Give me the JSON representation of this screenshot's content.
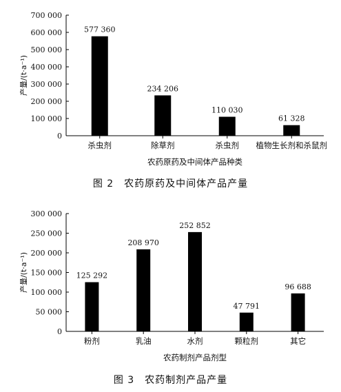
{
  "chart_data": [
    {
      "type": "bar",
      "categories": [
        "杀虫剂",
        "除草剂",
        "杀虫剂",
        "植物生长剂和杀鼠剂"
      ],
      "values": [
        577360,
        234206,
        110030,
        61328
      ],
      "data_labels": [
        "577 360",
        "234 206",
        "110 030",
        "61 328"
      ],
      "ylim": [
        0,
        700000
      ],
      "yticks": [
        0,
        100000,
        200000,
        300000,
        400000,
        500000,
        600000,
        700000
      ],
      "ytick_labels": [
        "0",
        "100 000",
        "200 000",
        "300 000",
        "400 000",
        "500 000",
        "600 000",
        "700 000"
      ],
      "xlabel": "农药原药及中间体产品种类",
      "ylabel": "产量/(t·a⁻¹)",
      "caption": "图 2　农药原药及中间体产品产量",
      "grid": false,
      "bar_color": "#000000"
    },
    {
      "type": "bar",
      "categories": [
        "粉剂",
        "乳油",
        "水剂",
        "颗粒剂",
        "其它"
      ],
      "values": [
        125292,
        208970,
        252852,
        47791,
        96688
      ],
      "data_labels": [
        "125 292",
        "208 970",
        "252 852",
        "47 791",
        "96 688"
      ],
      "ylim": [
        0,
        300000
      ],
      "yticks": [
        0,
        50000,
        100000,
        150000,
        200000,
        250000,
        300000
      ],
      "ytick_labels": [
        "0",
        "50 000",
        "100 000",
        "150 000",
        "200 000",
        "250 000",
        "300 000"
      ],
      "xlabel": "农药制剂产品剂型",
      "ylabel": "产量/(t·a⁻¹)",
      "caption": "图 3　农药制剂产品产量",
      "grid": false,
      "bar_color": "#000000"
    }
  ]
}
